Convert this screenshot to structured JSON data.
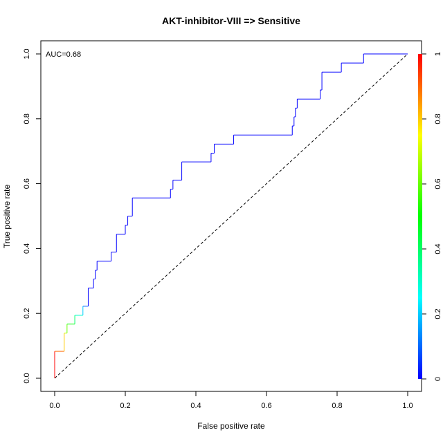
{
  "chart_data": {
    "type": "line",
    "title": "AKT-inhibitor-VIII => Sensitive",
    "xlabel": "False positive rate",
    "ylabel": "True positive rate",
    "xlim": [
      0,
      1
    ],
    "ylim": [
      0,
      1
    ],
    "x_ticks": [
      "0.0",
      "0.2",
      "0.4",
      "0.6",
      "0.8",
      "1.0"
    ],
    "y_ticks": [
      "0.0",
      "0.2",
      "0.4",
      "0.6",
      "0.8",
      "1.0"
    ],
    "annotation": "AUC=0.68",
    "grid": false,
    "colorbar": {
      "ticks": [
        "0",
        "0.2",
        "0.4",
        "0.6",
        "0.8",
        "1"
      ],
      "colors": [
        "#0000ff",
        "#00ffff",
        "#00ff00",
        "#ffff00",
        "#ff0000"
      ]
    },
    "reference_line": {
      "x": [
        0,
        1
      ],
      "y": [
        0,
        1
      ],
      "style": "dashed"
    },
    "series": [
      {
        "x": [
          0,
          0,
          0.027,
          0.027,
          0.035,
          0.035,
          0.057,
          0.057,
          0.08,
          0.08,
          0.095,
          0.095,
          0.11,
          0.11,
          0.115,
          0.115,
          0.12,
          0.12,
          0.16,
          0.16,
          0.175,
          0.175,
          0.2,
          0.2,
          0.207,
          0.207,
          0.22,
          0.22,
          0.328,
          0.328,
          0.335,
          0.335,
          0.36,
          0.36,
          0.443,
          0.443,
          0.452,
          0.452,
          0.507,
          0.507,
          0.673,
          0.673,
          0.678,
          0.678,
          0.682,
          0.682,
          0.687,
          0.687,
          0.752,
          0.752,
          0.757,
          0.757,
          0.812,
          0.812,
          0.875,
          0.875,
          1.0
        ],
        "y": [
          0,
          0.083,
          0.083,
          0.139,
          0.139,
          0.167,
          0.167,
          0.194,
          0.194,
          0.222,
          0.222,
          0.278,
          0.278,
          0.306,
          0.306,
          0.333,
          0.333,
          0.361,
          0.361,
          0.389,
          0.389,
          0.444,
          0.444,
          0.472,
          0.472,
          0.5,
          0.5,
          0.556,
          0.556,
          0.583,
          0.583,
          0.611,
          0.611,
          0.667,
          0.667,
          0.694,
          0.694,
          0.722,
          0.722,
          0.75,
          0.75,
          0.778,
          0.778,
          0.806,
          0.806,
          0.833,
          0.833,
          0.861,
          0.861,
          0.889,
          0.889,
          0.944,
          0.944,
          0.972,
          0.972,
          1.0,
          1.0
        ]
      }
    ]
  }
}
